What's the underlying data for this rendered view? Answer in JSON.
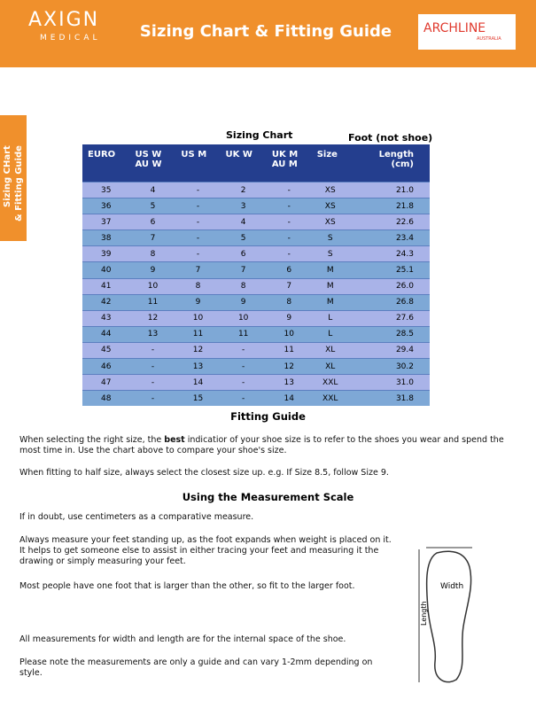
{
  "header": {
    "logo": "AXIGN",
    "logo_sub": "MEDICAL",
    "title": "Sizing Chart & Fitting Guide",
    "brand": "ARCHLINE",
    "brand_sub": "AUSTRALIA"
  },
  "side_tab": [
    "Sizing CHart",
    "& Fitting Guide"
  ],
  "sizing_chart": {
    "title": "Sizing Chart",
    "note": "Foot (not shoe)",
    "columns": [
      [
        "EURO"
      ],
      [
        "US W",
        "AU W"
      ],
      [
        "US M"
      ],
      [
        "UK W"
      ],
      [
        "UK M",
        "AU M"
      ],
      [
        "Size"
      ],
      [
        "Length",
        "(cm)"
      ]
    ],
    "rows": [
      [
        "35",
        "4",
        "-",
        "2",
        "-",
        "XS",
        "21.0"
      ],
      [
        "36",
        "5",
        "-",
        "3",
        "-",
        "XS",
        "21.8"
      ],
      [
        "37",
        "6",
        "-",
        "4",
        "-",
        "XS",
        "22.6"
      ],
      [
        "38",
        "7",
        "-",
        "5",
        "-",
        "S",
        "23.4"
      ],
      [
        "39",
        "8",
        "-",
        "6",
        "-",
        "S",
        "24.3"
      ],
      [
        "40",
        "9",
        "7",
        "7",
        "6",
        "M",
        "25.1"
      ],
      [
        "41",
        "10",
        "8",
        "8",
        "7",
        "M",
        "26.0"
      ],
      [
        "42",
        "11",
        "9",
        "9",
        "8",
        "M",
        "26.8"
      ],
      [
        "43",
        "12",
        "10",
        "10",
        "9",
        "L",
        "27.6"
      ],
      [
        "44",
        "13",
        "11",
        "11",
        "10",
        "L",
        "28.5"
      ],
      [
        "45",
        "-",
        "12",
        "-",
        "11",
        "XL",
        "29.4"
      ],
      [
        "46",
        "-",
        "13",
        "-",
        "12",
        "XL",
        "30.2"
      ],
      [
        "47",
        "-",
        "14",
        "-",
        "13",
        "XXL",
        "31.0"
      ],
      [
        "48",
        "-",
        "15",
        "-",
        "14",
        "XXL",
        "31.8"
      ]
    ]
  },
  "fitting_guide": {
    "title": "Fitting Guide",
    "paragraph_1": [
      "When selecting the right size, the ",
      "best",
      " indicatior of your shoe size is to refer to the shoes you wear and spend the most time in. Use the chart above to compare your shoe's size."
    ],
    "paragraph_2": "When fitting to half size, always select the closest size up. e.g. If Size 8.5, follow Size 9."
  },
  "measurement": {
    "title": "Using the Measurement Scale",
    "paragraphs": [
      "If in doubt, use centimeters as a comparative measure.",
      "Always measure your feet standing up, as the foot expands when weight is placed on it. It helps to get someone else to assist in either tracing your feet and measuring it the drawing or simply measuring your feet.",
      "Most people have one foot that is larger than the other, so fit to the larger foot.",
      "All measurements for width and length are for the internal space of the shoe.",
      "Please note the measurements are only a guide and can vary 1-2mm depending on style."
    ],
    "diagram": {
      "width_label": "Width",
      "length_label": "Length"
    }
  }
}
